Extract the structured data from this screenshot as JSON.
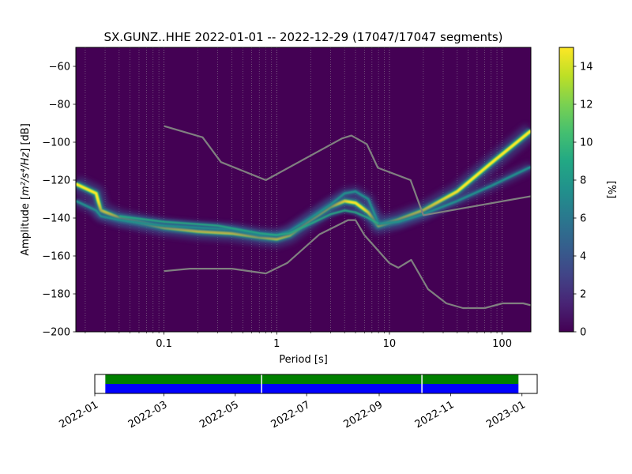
{
  "chart_data": [
    {
      "type": "heatmap",
      "title": "SX.GUNZ..HHE   2022-01-01 -- 2022-12-29  (17047/17047 segments)",
      "xlabel": "Period [s]",
      "ylabel_prefix": "Amplitude [",
      "ylabel_math": "m²/s⁴/Hz",
      "ylabel_suffix": "] [dB]",
      "xscale": "log",
      "xlim": [
        0.0165,
        180
      ],
      "ylim": [
        -200,
        -50
      ],
      "x_ticks": [
        {
          "value": 0.1,
          "label": "0.1"
        },
        {
          "value": 1,
          "label": "1"
        },
        {
          "value": 10,
          "label": "10"
        },
        {
          "value": 100,
          "label": "100"
        }
      ],
      "y_ticks": [
        {
          "value": -60,
          "label": "−60"
        },
        {
          "value": -80,
          "label": "−80"
        },
        {
          "value": -100,
          "label": "−100"
        },
        {
          "value": -120,
          "label": "−120"
        },
        {
          "value": -140,
          "label": "−140"
        },
        {
          "value": -160,
          "label": "−160"
        },
        {
          "value": -180,
          "label": "−180"
        },
        {
          "value": -200,
          "label": "−200"
        }
      ],
      "colormap": "viridis",
      "background_color": "#440154",
      "colorbar": {
        "label": "[%]",
        "range": [
          0,
          15
        ],
        "ticks": [
          {
            "value": 0,
            "label": "0"
          },
          {
            "value": 2,
            "label": "2"
          },
          {
            "value": 4,
            "label": "4"
          },
          {
            "value": 6,
            "label": "6"
          },
          {
            "value": 8,
            "label": "8"
          },
          {
            "value": 10,
            "label": "10"
          },
          {
            "value": 12,
            "label": "12"
          },
          {
            "value": 14,
            "label": "14"
          }
        ]
      },
      "grid": "dotted vertical lines at log ticks",
      "density_ridges": [
        {
          "name": "main",
          "points": [
            [
              0.0165,
              -122
            ],
            [
              0.025,
              -127
            ],
            [
              0.0275,
              -136
            ],
            [
              0.04,
              -140
            ],
            [
              0.07,
              -143
            ],
            [
              0.1,
              -145
            ],
            [
              0.2,
              -147
            ],
            [
              0.4,
              -148
            ],
            [
              0.7,
              -150
            ],
            [
              1.0,
              -151
            ],
            [
              1.3,
              -149
            ],
            [
              2.0,
              -141
            ],
            [
              3.0,
              -134
            ],
            [
              4.0,
              -131
            ],
            [
              5.0,
              -132
            ],
            [
              6.5,
              -137
            ],
            [
              8.0,
              -144
            ],
            [
              12,
              -141
            ],
            [
              20,
              -136
            ],
            [
              40,
              -126
            ],
            [
              80,
              -111
            ],
            [
              180,
              -94
            ]
          ]
        },
        {
          "name": "secondary",
          "points": [
            [
              0.0165,
              -131
            ],
            [
              0.025,
              -136
            ],
            [
              0.0275,
              -139
            ],
            [
              0.04,
              -141
            ],
            [
              0.07,
              -143
            ],
            [
              0.1,
              -144
            ],
            [
              0.2,
              -145
            ],
            [
              0.4,
              -146
            ],
            [
              0.7,
              -149
            ],
            [
              1.0,
              -149
            ],
            [
              1.3,
              -147
            ],
            [
              2.0,
              -140
            ],
            [
              3.0,
              -133
            ],
            [
              4.0,
              -127
            ],
            [
              5.0,
              -126
            ],
            [
              6.5,
              -130
            ],
            [
              8.0,
              -143
            ],
            [
              12,
              -142
            ],
            [
              20,
              -138
            ],
            [
              40,
              -131
            ],
            [
              80,
              -123
            ],
            [
              180,
              -113
            ]
          ]
        },
        {
          "name": "tertiary",
          "points": [
            [
              0.04,
              -139
            ],
            [
              0.1,
              -142
            ],
            [
              0.3,
              -144
            ],
            [
              0.7,
              -148
            ],
            [
              1.0,
              -149
            ],
            [
              1.3,
              -148
            ],
            [
              2.0,
              -143
            ],
            [
              3.0,
              -138
            ],
            [
              4.0,
              -136
            ],
            [
              5.0,
              -137
            ],
            [
              6.5,
              -140
            ],
            [
              8.0,
              -143
            ]
          ]
        }
      ],
      "noise_models": [
        {
          "name": "NHNM",
          "points": [
            [
              0.1,
              -91.5
            ],
            [
              0.22,
              -97.4
            ],
            [
              0.32,
              -110.5
            ],
            [
              0.8,
              -120
            ],
            [
              3.8,
              -98
            ],
            [
              4.6,
              -96.5
            ],
            [
              6.3,
              -101
            ],
            [
              7.9,
              -113.5
            ],
            [
              15.4,
              -120
            ],
            [
              20,
              -138.5
            ],
            [
              180,
              -128.5
            ]
          ]
        },
        {
          "name": "NLNM",
          "points": [
            [
              0.1,
              -168
            ],
            [
              0.17,
              -166.7
            ],
            [
              0.4,
              -166.7
            ],
            [
              0.8,
              -169.2
            ],
            [
              1.24,
              -163.7
            ],
            [
              2.4,
              -148.6
            ],
            [
              4.3,
              -141.1
            ],
            [
              5.0,
              -141.1
            ],
            [
              6.0,
              -149
            ],
            [
              10,
              -163.8
            ],
            [
              12,
              -166.2
            ],
            [
              15.6,
              -162.1
            ],
            [
              22,
              -177.5
            ],
            [
              32,
              -185
            ],
            [
              45,
              -187.5
            ],
            [
              70,
              -187.5
            ],
            [
              101,
              -185
            ],
            [
              154,
              -185
            ],
            [
              180,
              -186
            ]
          ]
        }
      ]
    },
    {
      "type": "timeline",
      "xlim": [
        "2022-01-01",
        "2023-01-14"
      ],
      "x_ticks": [
        {
          "value": "2022-01-01",
          "label": "2022-01"
        },
        {
          "value": "2022-03-01",
          "label": "2022-03"
        },
        {
          "value": "2022-05-01",
          "label": "2022-05"
        },
        {
          "value": "2022-07-01",
          "label": "2022-07"
        },
        {
          "value": "2022-09-01",
          "label": "2022-09"
        },
        {
          "value": "2022-11-01",
          "label": "2022-11"
        },
        {
          "value": "2023-01-01",
          "label": "2023-01"
        }
      ],
      "series": [
        {
          "color": "#008000",
          "segments": [
            [
              "2022-01-10",
              "2022-05-23"
            ],
            [
              "2022-05-24",
              "2022-10-07"
            ],
            [
              "2022-10-08",
              "2022-12-29"
            ]
          ]
        },
        {
          "color": "#0000ff",
          "segments": [
            [
              "2022-01-10",
              "2022-05-23"
            ],
            [
              "2022-05-24",
              "2022-10-07"
            ],
            [
              "2022-10-08",
              "2022-12-29"
            ]
          ]
        }
      ]
    }
  ]
}
